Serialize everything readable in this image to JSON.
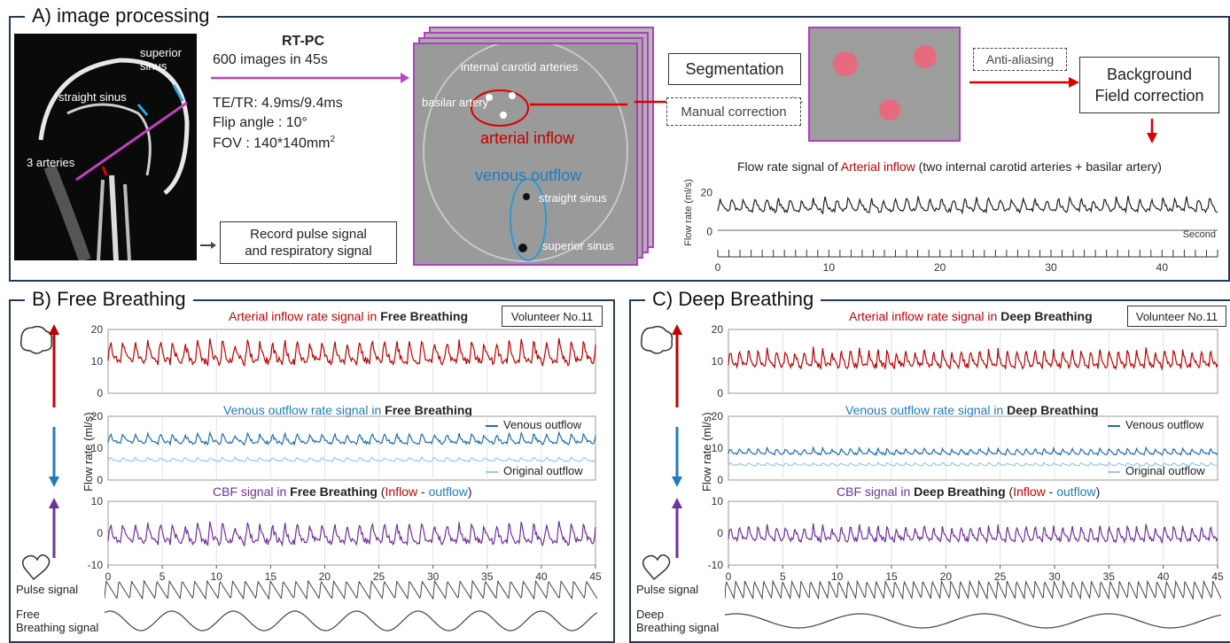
{
  "panelA": {
    "title": "A) image processing",
    "mri": {
      "superior_sinus": "superior sinus",
      "straight_sinus": "straight sinus",
      "three_arteries": "3 arteries"
    },
    "rtpc": {
      "title": "RT-PC",
      "images": "600 images in 45s",
      "te_tr": "TE/TR: 4.9ms/9.4ms",
      "flip": "Flip angle : 10°",
      "fov": "FOV : 140*140mm",
      "fov_sup": "2"
    },
    "record_box": {
      "line1": "Record pulse signal",
      "line2": "and respiratory signal"
    },
    "stack": {
      "internal_carotid": "internal carotid arteries",
      "basilar": "basilar artery",
      "arterial_inflow": "arterial inflow",
      "venous_outflow": "venous outflow",
      "straight_sinus": "straight sinus",
      "superior_sinus": "superior sinus"
    },
    "segmentation": "Segmentation",
    "manual_correction": "Manual correction",
    "anti_aliasing": "Anti-aliasing",
    "background": {
      "line1": "Background",
      "line2": "Field correction"
    },
    "flow_chart": {
      "title_pre": "Flow rate signal of ",
      "title_red": "Arterial inflow",
      "title_post": " (two internal carotid arteries + basilar artery)",
      "ylabel": "Flow rate (ml/s)",
      "xunit": "Second"
    }
  },
  "panelB": {
    "title": "B) Free Breathing",
    "volunteer": "Volunteer No.11",
    "arterial_title": {
      "c": "Arterial inflow",
      "m": " rate signal in ",
      "b": "Free Breathing"
    },
    "venous_title": {
      "c": "Venous outflow",
      "m": " rate signal in ",
      "b": "Free Breathing"
    },
    "cbf_title": {
      "c": "CBF signal",
      "m": " in ",
      "b": "Free Breathing",
      "p1": " (",
      "in": "Inflow",
      "mid": " - ",
      "out": "outflow",
      "p2": ")"
    },
    "legend_venous": "Venous outflow",
    "legend_original": "Original outflow",
    "ylabel": "Flow rate (ml/s)",
    "pulse": "Pulse signal",
    "breath_line1": "Free",
    "breath_line2": "Breathing signal"
  },
  "panelC": {
    "title": "C) Deep Breathing",
    "volunteer": "Volunteer No.11",
    "arterial_title": {
      "c": "Arterial inflow",
      "m": " rate signal in ",
      "b": "Deep Breathing"
    },
    "venous_title": {
      "c": "Venous outflow",
      "m": " rate signal in ",
      "b": "Deep Breathing"
    },
    "cbf_title": {
      "c": "CBF signal",
      "m": " in ",
      "b": "Deep Breathing",
      "p1": " (",
      "in": "Inflow",
      "mid": " - ",
      "out": "outflow",
      "p2": ")"
    },
    "legend_venous": "Venous outflow",
    "legend_original": "Original outflow",
    "ylabel": "Flow rate (ml/s)",
    "pulse": "Pulse signal",
    "breath_line1": "Deep",
    "breath_line2": "Breathing signal"
  },
  "chart_data": [
    {
      "type": "line",
      "name": "A-arterial-flow",
      "x_range": [
        0,
        45
      ],
      "ylim": [
        -2,
        28
      ],
      "y_ticks": [
        0,
        20
      ],
      "x_ticks": [
        0,
        10,
        20,
        30,
        40
      ],
      "series": [
        {
          "mean": 14,
          "amp": 4.5,
          "period": 1.05
        }
      ]
    },
    {
      "type": "line",
      "name": "B-arterial",
      "x_range": [
        0,
        45
      ],
      "ylim": [
        0,
        20
      ],
      "y_ticks": [
        0,
        10,
        20
      ],
      "series": [
        {
          "mean": 13,
          "amp": 4.5,
          "period": 1.15,
          "color": "#c00000"
        }
      ]
    },
    {
      "type": "line",
      "name": "B-venous",
      "x_range": [
        0,
        45
      ],
      "ylim": [
        0,
        20
      ],
      "y_ticks": [
        0,
        10,
        20
      ],
      "series": [
        {
          "mean": 13,
          "amp": 2,
          "period": 1.15,
          "color": "#1f6fb5"
        },
        {
          "mean": 6.5,
          "amp": 0.8,
          "period": 1.15,
          "color": "#9ec8ea"
        }
      ]
    },
    {
      "type": "line",
      "name": "B-cbf",
      "x_range": [
        0,
        45
      ],
      "ylim": [
        -10,
        10
      ],
      "y_ticks": [
        -10,
        0,
        10
      ],
      "x_ticks": [
        0,
        5,
        10,
        15,
        20,
        25,
        30,
        35,
        40,
        45
      ],
      "series": [
        {
          "mean": 0,
          "amp": 4,
          "period": 1.15,
          "color": "#7030a0"
        }
      ]
    },
    {
      "type": "line",
      "name": "C-arterial",
      "x_range": [
        0,
        45
      ],
      "ylim": [
        0,
        20
      ],
      "y_ticks": [
        0,
        10,
        20
      ],
      "series": [
        {
          "mean": 11,
          "amp": 3.5,
          "period": 0.85,
          "color": "#c00000"
        }
      ]
    },
    {
      "type": "line",
      "name": "C-venous",
      "x_range": [
        0,
        45
      ],
      "ylim": [
        0,
        20
      ],
      "y_ticks": [
        0,
        10,
        20
      ],
      "series": [
        {
          "mean": 9,
          "amp": 1.2,
          "period": 0.85,
          "color": "#1f6fb5"
        },
        {
          "mean": 5,
          "amp": 0.6,
          "period": 0.85,
          "color": "#9ec8ea"
        }
      ]
    },
    {
      "type": "line",
      "name": "C-cbf",
      "x_range": [
        0,
        45
      ],
      "ylim": [
        -10,
        10
      ],
      "y_ticks": [
        -10,
        0,
        10
      ],
      "x_ticks": [
        0,
        5,
        10,
        15,
        20,
        25,
        30,
        35,
        40,
        45
      ],
      "series": [
        {
          "mean": 0,
          "amp": 3,
          "period": 0.85,
          "color": "#7030a0"
        }
      ]
    }
  ]
}
